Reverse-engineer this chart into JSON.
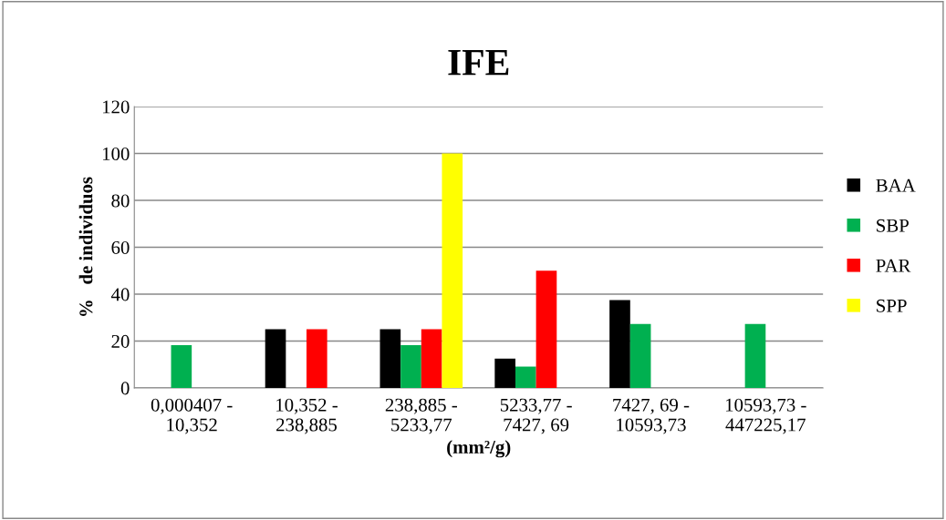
{
  "chart_data": {
    "type": "bar",
    "title": "IFE",
    "xlabel": "(mm²/g)",
    "ylabel": "%   de individuos",
    "categories": [
      "0,000407 -\n10,352",
      "10,352 -\n238,885",
      "238,885 -\n5233,77",
      "5233,77 -\n7427, 69",
      "7427, 69 -\n10593,73",
      "10593,73 -\n447225,17"
    ],
    "series": [
      {
        "name": "BAA",
        "color": "#000000",
        "values": [
          0,
          25,
          25,
          12.5,
          37.5,
          0
        ]
      },
      {
        "name": "SBP",
        "color": "#00b050",
        "values": [
          18.2,
          0,
          18.2,
          9.1,
          27.3,
          27.3
        ]
      },
      {
        "name": "PAR",
        "color": "#ff0000",
        "values": [
          0,
          25,
          25,
          50,
          0,
          0
        ]
      },
      {
        "name": "SPP",
        "color": "#ffff00",
        "values": [
          0,
          0,
          100,
          0,
          0,
          0
        ]
      }
    ],
    "ylim": [
      0,
      120
    ],
    "yticks": [
      0,
      20,
      40,
      60,
      80,
      100,
      120
    ],
    "grid": "y",
    "legend": "right"
  }
}
